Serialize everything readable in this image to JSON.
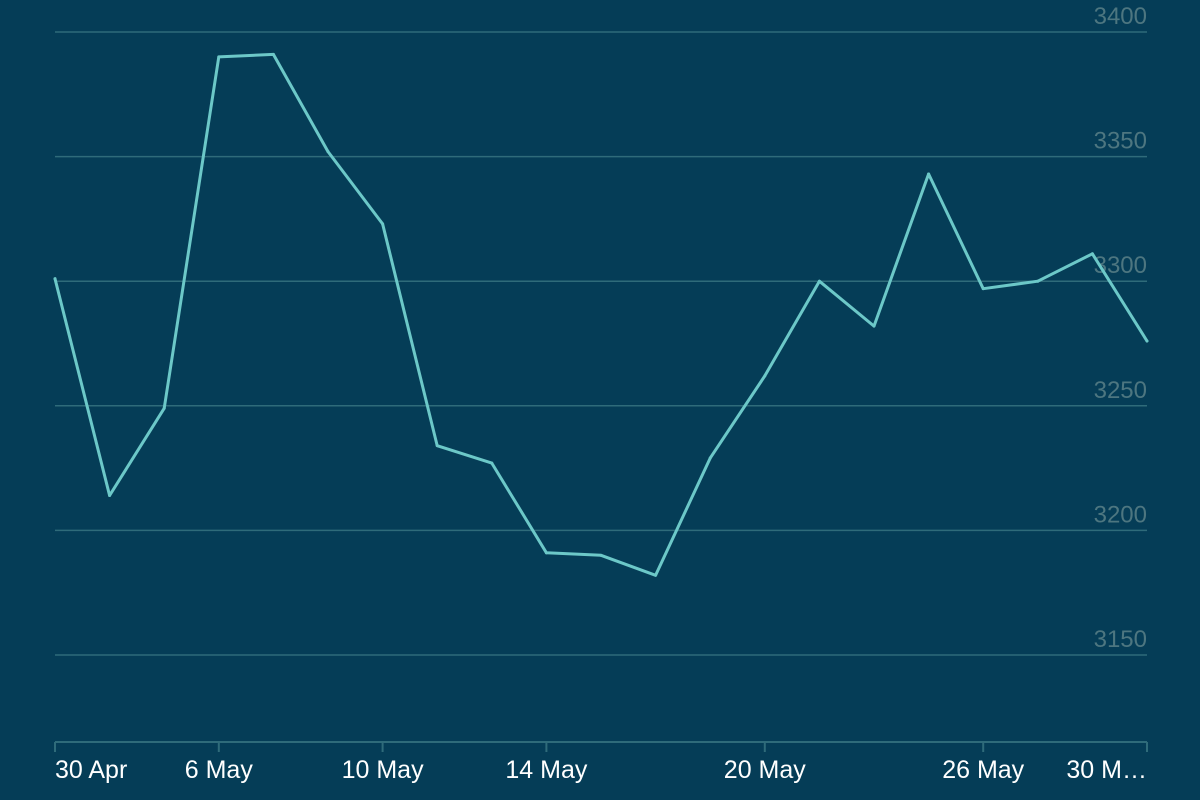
{
  "colors": {
    "background": "#053d57",
    "line": "#6cc8c8",
    "grid": "#2f6b7a",
    "y_tick_text": "#4d7680",
    "x_tick_text": "#ffffff",
    "axis": "#2f6b7a"
  },
  "chart_data": {
    "type": "line",
    "title": "",
    "xlabel": "",
    "ylabel": "",
    "grid": true,
    "y_axis_side": "right",
    "ylim": [
      3100,
      3400
    ],
    "y_ticks": [
      3150,
      3200,
      3250,
      3300,
      3350,
      3400
    ],
    "x_ticks": [
      {
        "label": "30 Apr",
        "index": 0
      },
      {
        "label": "6 May",
        "index": 3
      },
      {
        "label": "10 May",
        "index": 6
      },
      {
        "label": "14 May",
        "index": 9
      },
      {
        "label": "20 May",
        "index": 13
      },
      {
        "label": "26 May",
        "index": 17
      },
      {
        "label": "30 M…",
        "index": 20
      }
    ],
    "series": [
      {
        "values": [
          3301,
          3214,
          3249,
          3390,
          3391,
          3352,
          3323,
          3234,
          3227,
          3191,
          3190,
          3182,
          3229,
          3262,
          3300,
          3282,
          3343,
          3297,
          3300,
          3311,
          3276
        ]
      }
    ]
  }
}
